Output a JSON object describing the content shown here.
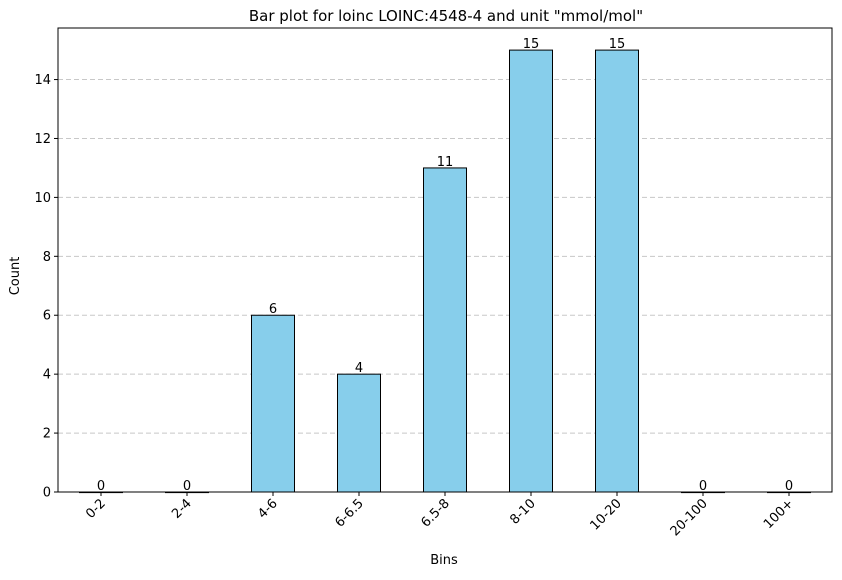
{
  "chart_data": {
    "type": "bar",
    "title": "Bar plot for loinc LOINC:4548-4 and unit \"mmol/mol\"",
    "xlabel": "Bins",
    "ylabel": "Count",
    "categories": [
      "0-2",
      "2-4",
      "4-6",
      "6-6.5",
      "6.5-8",
      "8-10",
      "10-20",
      "20-100",
      "100+"
    ],
    "values": [
      0,
      0,
      6,
      4,
      11,
      15,
      15,
      0,
      0
    ],
    "data_labels": [
      "0",
      "0",
      "6",
      "4",
      "11",
      "15",
      "15",
      "0",
      "0"
    ],
    "ylim": [
      0,
      15.75
    ],
    "yticks": [
      0,
      2,
      4,
      6,
      8,
      10,
      12,
      14
    ],
    "ytick_labels": [
      "0",
      "2",
      "4",
      "6",
      "8",
      "10",
      "12",
      "14"
    ],
    "grid": "y-dashed",
    "colors": {
      "bar_fill": "#87CEEB",
      "bar_edge": "#000000",
      "grid": "#c8c8c8"
    }
  }
}
